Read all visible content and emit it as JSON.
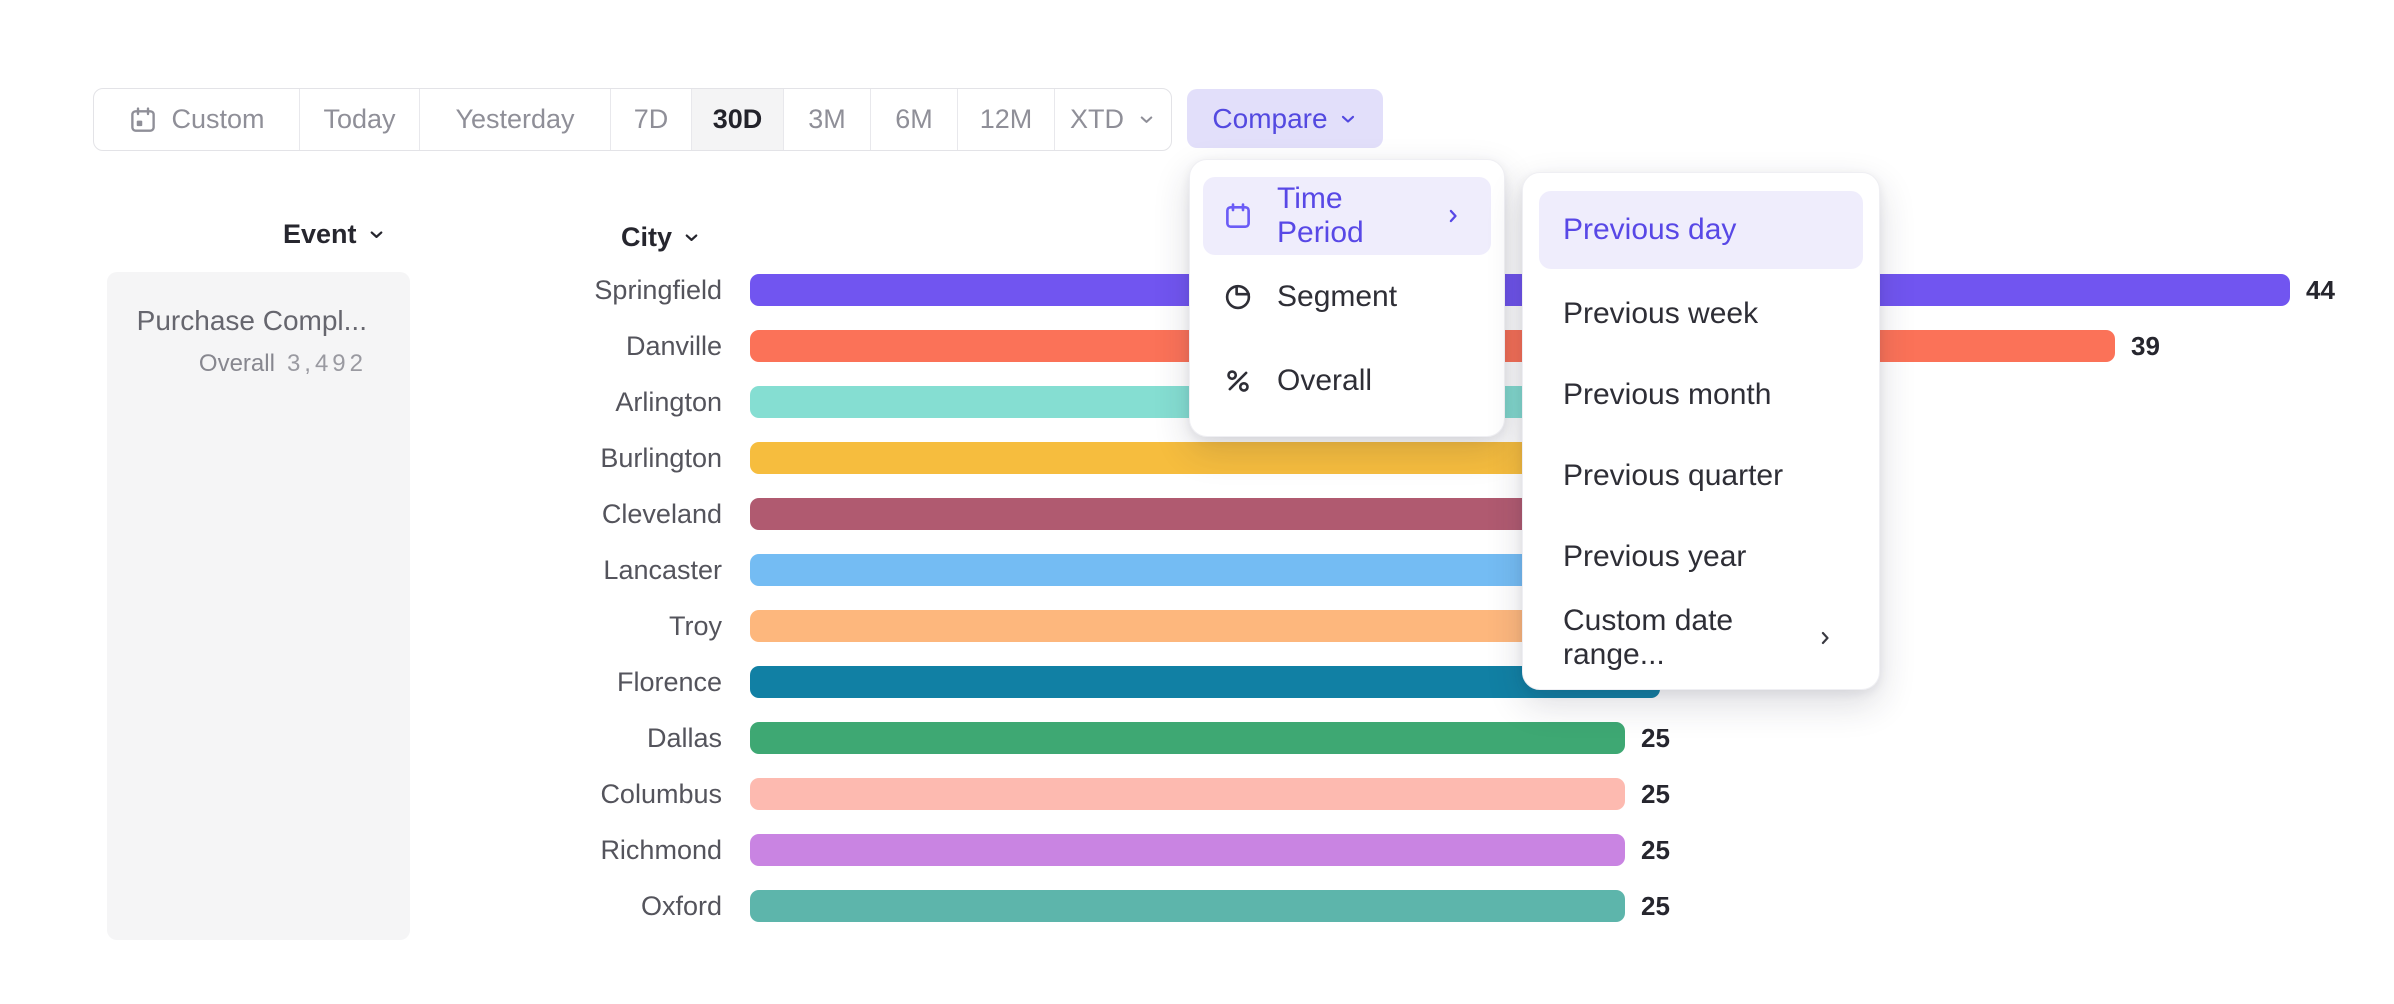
{
  "toolbar": {
    "items": [
      {
        "id": "custom",
        "label": "Custom",
        "icon": "calendar-icon"
      },
      {
        "id": "today",
        "label": "Today"
      },
      {
        "id": "yesterday",
        "label": "Yesterday"
      },
      {
        "id": "7d",
        "label": "7D"
      },
      {
        "id": "30d",
        "label": "30D",
        "active": true
      },
      {
        "id": "3m",
        "label": "3M"
      },
      {
        "id": "6m",
        "label": "6M"
      },
      {
        "id": "12m",
        "label": "12M"
      },
      {
        "id": "xtd",
        "label": "XTD",
        "chevron": true
      }
    ],
    "compare_label": "Compare"
  },
  "event_panel": {
    "header_label": "Event",
    "event_name": "Purchase Compl...",
    "overall_label": "Overall",
    "overall_value": "3,492"
  },
  "chart_data": {
    "type": "bar",
    "orientation": "horizontal",
    "column_header": "City",
    "categories": [
      "Springfield",
      "Danville",
      "Arlington",
      "Burlington",
      "Cleveland",
      "Lancaster",
      "Troy",
      "Florence",
      "Dallas",
      "Columbus",
      "Richmond",
      "Oxford"
    ],
    "values": [
      44,
      39,
      null,
      null,
      null,
      null,
      null,
      null,
      25,
      25,
      25,
      25
    ],
    "occluded_bar_units_estimate": [
      null,
      null,
      31,
      30,
      29,
      28,
      27,
      26,
      null,
      null,
      null,
      null
    ],
    "bar_colors": [
      "#7155f0",
      "#fb7258",
      "#85ded2",
      "#f6bd3e",
      "#b05a70",
      "#74bcf3",
      "#fdb77d",
      "#1180a4",
      "#3ea873",
      "#fdbab0",
      "#c984e2",
      "#5db5ab"
    ],
    "note": "bars 3-8 end behind the open dropdown menus; their value labels are not visible",
    "axes_hidden": true,
    "grid": false,
    "legend": false
  },
  "compare_menu": {
    "items": [
      {
        "label": "Time Period",
        "icon": "calendar-icon",
        "active": true,
        "has_submenu": true
      },
      {
        "label": "Segment",
        "icon": "segment-icon"
      },
      {
        "label": "Overall",
        "icon": "percent-icon"
      }
    ]
  },
  "time_period_submenu": {
    "items": [
      {
        "label": "Previous day",
        "active": true
      },
      {
        "label": "Previous week"
      },
      {
        "label": "Previous month"
      },
      {
        "label": "Previous quarter"
      },
      {
        "label": "Previous year"
      },
      {
        "label": "Custom date range...",
        "has_submenu": true
      }
    ]
  },
  "theme": {
    "accent_text": "#5349e0",
    "accent_icon": "#6b5cf6",
    "accent_pill_bg": "#efedfc",
    "compare_bg": "#e2dffa",
    "toolbar_active_bg": "#f4f4f5",
    "text_dark": "#26262e",
    "text_gray": "#8f8f98",
    "label_gray": "#54545c",
    "card_bg": "#f5f5f6"
  }
}
